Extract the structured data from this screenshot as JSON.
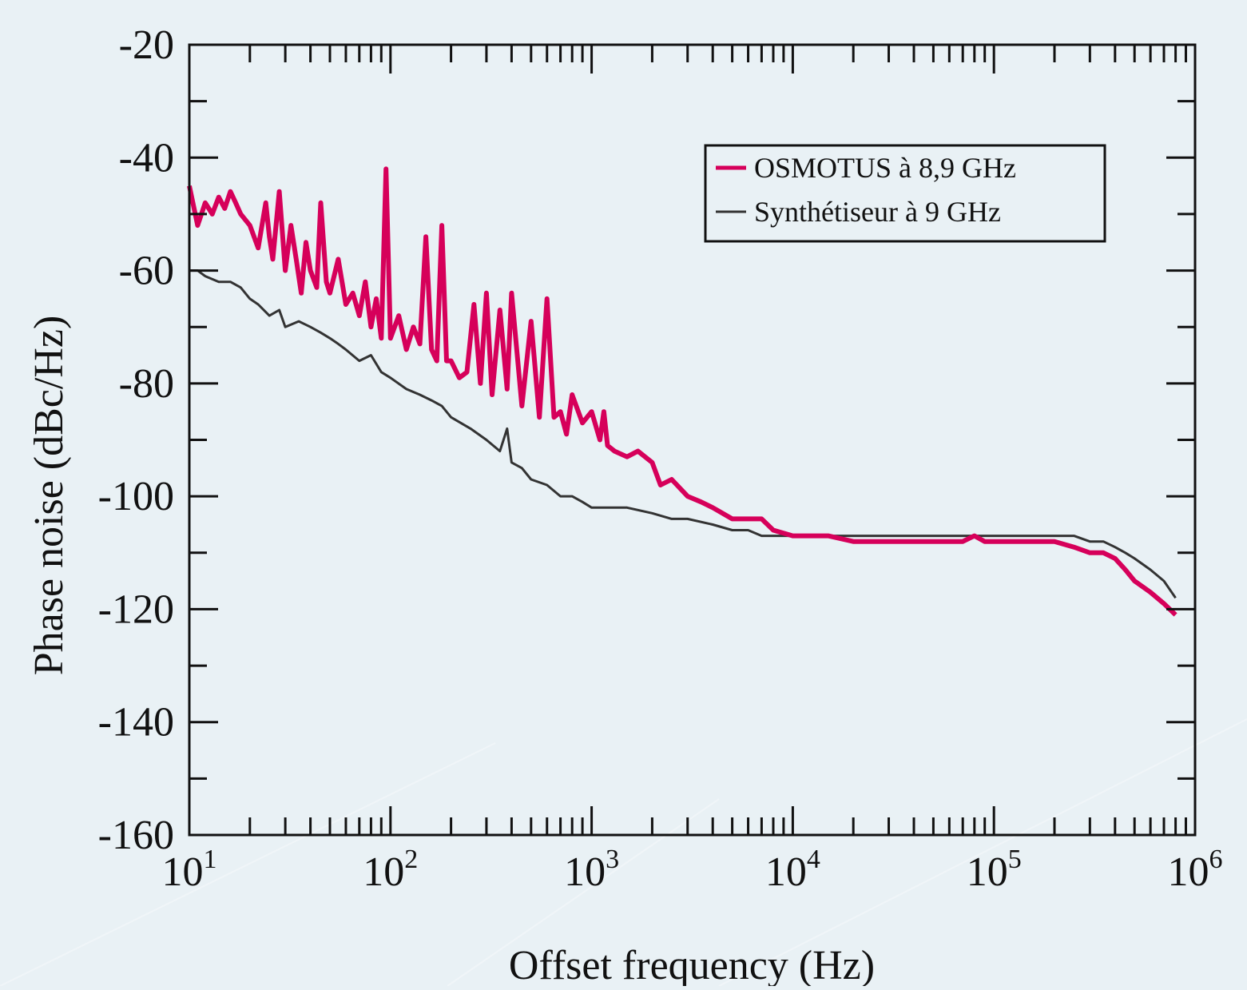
{
  "chart_data": {
    "type": "line",
    "title": "",
    "xlabel": "Offset frequency (Hz)",
    "ylabel": "Phase noise (dBc/Hz)",
    "x_scale": "log",
    "xlim": [
      10,
      1000000
    ],
    "ylim": [
      -160,
      -20
    ],
    "y_ticks": [
      -20,
      -40,
      -60,
      -80,
      -100,
      -120,
      -140,
      -160
    ],
    "x_ticks": [
      {
        "base": "10",
        "exp": "1"
      },
      {
        "base": "10",
        "exp": "2"
      },
      {
        "base": "10",
        "exp": "3"
      },
      {
        "base": "10",
        "exp": "4"
      },
      {
        "base": "10",
        "exp": "5"
      },
      {
        "base": "10",
        "exp": "6"
      }
    ],
    "grid": false,
    "legend_position": "top-right",
    "series": [
      {
        "name": "OSMOTUS à 8,9 GHz",
        "color": "#d6005a",
        "x": [
          10,
          11,
          12,
          13,
          14,
          15,
          16,
          17,
          18,
          20,
          22,
          24,
          25,
          26,
          28,
          30,
          32,
          34,
          36,
          38,
          40,
          43,
          45,
          48,
          50,
          55,
          60,
          65,
          70,
          75,
          80,
          85,
          90,
          95,
          100,
          110,
          120,
          130,
          140,
          150,
          160,
          170,
          180,
          190,
          200,
          220,
          240,
          260,
          280,
          300,
          320,
          350,
          380,
          400,
          450,
          500,
          550,
          600,
          650,
          700,
          750,
          800,
          900,
          1000,
          1100,
          1150,
          1200,
          1300,
          1500,
          1700,
          2000,
          2200,
          2500,
          3000,
          3500,
          4000,
          5000,
          6000,
          7000,
          8000,
          10000,
          12000,
          15000,
          20000,
          25000,
          30000,
          40000,
          50000,
          60000,
          70000,
          80000,
          90000,
          100000,
          120000,
          150000,
          200000,
          250000,
          300000,
          350000,
          400000,
          450000,
          500000,
          600000,
          700000,
          800000
        ],
        "y": [
          -45,
          -52,
          -48,
          -50,
          -47,
          -49,
          -46,
          -48,
          -50,
          -52,
          -56,
          -48,
          -54,
          -58,
          -46,
          -60,
          -52,
          -58,
          -64,
          -55,
          -60,
          -63,
          -48,
          -62,
          -64,
          -58,
          -66,
          -64,
          -68,
          -62,
          -70,
          -65,
          -72,
          -42,
          -72,
          -68,
          -74,
          -70,
          -73,
          -54,
          -74,
          -76,
          -52,
          -76,
          -76,
          -79,
          -78,
          -66,
          -80,
          -64,
          -82,
          -67,
          -81,
          -64,
          -84,
          -69,
          -86,
          -65,
          -86,
          -85,
          -89,
          -82,
          -87,
          -85,
          -90,
          -85,
          -91,
          -92,
          -93,
          -92,
          -94,
          -98,
          -97,
          -100,
          -101,
          -102,
          -104,
          -104,
          -104,
          -106,
          -107,
          -107,
          -107,
          -108,
          -108,
          -108,
          -108,
          -108,
          -108,
          -108,
          -107,
          -108,
          -108,
          -108,
          -108,
          -108,
          -109,
          -110,
          -110,
          -111,
          -113,
          -115,
          -117,
          -119,
          -121
        ]
      },
      {
        "name": "Synthétiseur à 9 GHz",
        "color": "#333333",
        "x": [
          10,
          11,
          12,
          14,
          16,
          18,
          20,
          22,
          25,
          28,
          30,
          35,
          40,
          45,
          50,
          55,
          60,
          70,
          80,
          90,
          100,
          120,
          140,
          160,
          180,
          200,
          250,
          300,
          350,
          380,
          400,
          450,
          500,
          600,
          700,
          800,
          900,
          1000,
          1200,
          1500,
          2000,
          2500,
          3000,
          4000,
          5000,
          6000,
          7000,
          8000,
          10000,
          12000,
          15000,
          20000,
          25000,
          30000,
          40000,
          50000,
          60000,
          70000,
          80000,
          90000,
          100000,
          120000,
          150000,
          200000,
          250000,
          300000,
          350000,
          400000,
          450000,
          500000,
          600000,
          700000,
          800000
        ],
        "y": [
          -60,
          -60,
          -61,
          -62,
          -62,
          -63,
          -65,
          -66,
          -68,
          -67,
          -70,
          -69,
          -70,
          -71,
          -72,
          -73,
          -74,
          -76,
          -75,
          -78,
          -79,
          -81,
          -82,
          -83,
          -84,
          -86,
          -88,
          -90,
          -92,
          -88,
          -94,
          -95,
          -97,
          -98,
          -100,
          -100,
          -101,
          -102,
          -102,
          -102,
          -103,
          -104,
          -104,
          -105,
          -106,
          -106,
          -107,
          -107,
          -107,
          -107,
          -107,
          -107,
          -107,
          -107,
          -107,
          -107,
          -107,
          -107,
          -107,
          -107,
          -107,
          -107,
          -107,
          -107,
          -107,
          -108,
          -108,
          -109,
          -110,
          -111,
          -113,
          -115,
          -118
        ]
      }
    ]
  }
}
